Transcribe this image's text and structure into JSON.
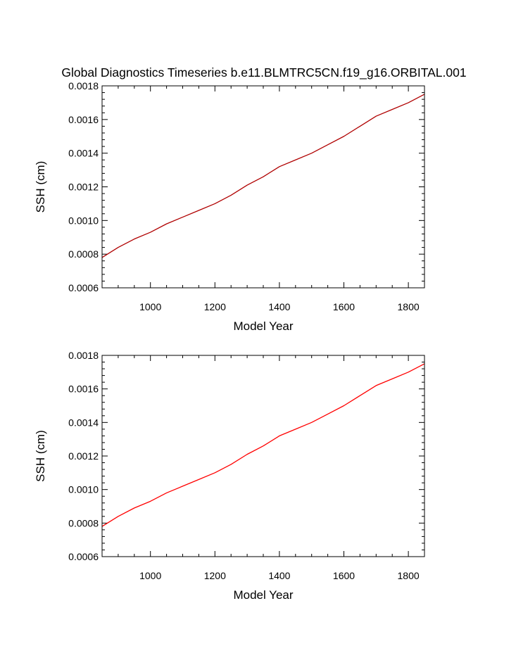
{
  "chart_data": [
    {
      "type": "line",
      "title": "Global Diagnostics Timeseries b.e11.BLMTRC5CN.f19_g16.ORBITAL.001",
      "xlabel": "Model Year",
      "ylabel": "SSH (cm)",
      "xlim": [
        850,
        1850
      ],
      "ylim": [
        0.0006,
        0.0018
      ],
      "xticks": [
        1000,
        1200,
        1400,
        1600,
        1800
      ],
      "yticks": [
        "0.0006",
        "0.0008",
        "0.0010",
        "0.0012",
        "0.0014",
        "0.0016",
        "0.0018"
      ],
      "series": [
        {
          "name": "SSH",
          "color": "#b00000",
          "x": [
            850,
            900,
            950,
            1000,
            1050,
            1100,
            1150,
            1200,
            1250,
            1300,
            1350,
            1400,
            1450,
            1500,
            1550,
            1600,
            1650,
            1700,
            1750,
            1800,
            1850
          ],
          "y": [
            0.00078,
            0.00084,
            0.00089,
            0.00093,
            0.00098,
            0.00102,
            0.00106,
            0.0011,
            0.00115,
            0.00121,
            0.00126,
            0.00132,
            0.00136,
            0.0014,
            0.00145,
            0.0015,
            0.00156,
            0.00162,
            0.00166,
            0.0017,
            0.00175
          ]
        }
      ]
    },
    {
      "type": "line",
      "title": "",
      "xlabel": "Model Year",
      "ylabel": "SSH (cm)",
      "xlim": [
        850,
        1850
      ],
      "ylim": [
        0.0006,
        0.0018
      ],
      "xticks": [
        1000,
        1200,
        1400,
        1600,
        1800
      ],
      "yticks": [
        "0.0006",
        "0.0008",
        "0.0010",
        "0.0012",
        "0.0014",
        "0.0016",
        "0.0018"
      ],
      "series": [
        {
          "name": "SSH",
          "color": "#ff0000",
          "x": [
            850,
            900,
            950,
            1000,
            1050,
            1100,
            1150,
            1200,
            1250,
            1300,
            1350,
            1400,
            1450,
            1500,
            1550,
            1600,
            1650,
            1700,
            1750,
            1800,
            1850
          ],
          "y": [
            0.00078,
            0.00084,
            0.00089,
            0.00093,
            0.00098,
            0.00102,
            0.00106,
            0.0011,
            0.00115,
            0.00121,
            0.00126,
            0.00132,
            0.00136,
            0.0014,
            0.00145,
            0.0015,
            0.00156,
            0.00162,
            0.00166,
            0.0017,
            0.00175
          ]
        }
      ]
    }
  ]
}
